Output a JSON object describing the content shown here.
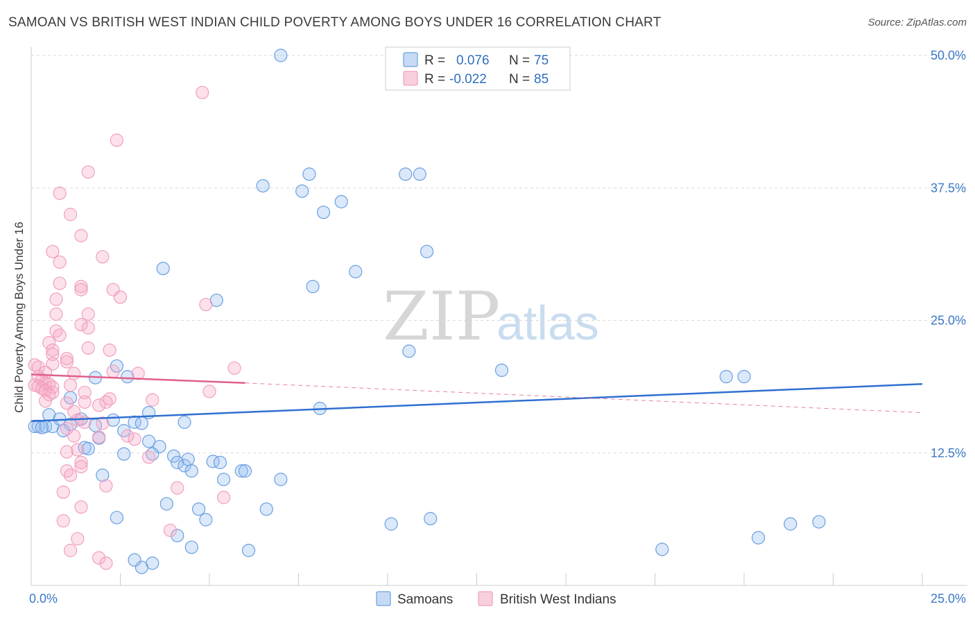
{
  "title": "SAMOAN VS BRITISH WEST INDIAN CHILD POVERTY AMONG BOYS UNDER 16 CORRELATION CHART",
  "source": "Source: ZipAtlas.com",
  "watermark": {
    "zip": "ZIP",
    "atlas": "atlas"
  },
  "chart_data": {
    "type": "scatter",
    "xlabel": "",
    "ylabel": "Child Poverty Among Boys Under 16",
    "xlim": [
      0,
      25
    ],
    "ylim": [
      0,
      50
    ],
    "x_tick_labels": [
      "0.0%",
      "25.0%"
    ],
    "y_ticks": [
      12.5,
      25.0,
      37.5,
      50.0
    ],
    "y_tick_labels": [
      "12.5%",
      "25.0%",
      "37.5%",
      "50.0%"
    ],
    "grid": "horizontal-dashed",
    "legend_placement": "top-center",
    "legend": {
      "r_label": "R =",
      "n_label": "N =",
      "entries": [
        {
          "name": "Samoans",
          "r": "0.076",
          "n": "75"
        },
        {
          "name": "British West Indians",
          "r": "-0.022",
          "n": "85"
        }
      ]
    },
    "series": [
      {
        "name": "Samoans",
        "color": "#6a9fe0",
        "line_color": "#2f6fd0",
        "trend": {
          "x": [
            0,
            25
          ],
          "y": [
            15.5,
            19.0
          ],
          "dashed_after": null
        },
        "points": [
          [
            7.0,
            50.0
          ],
          [
            6.5,
            37.7
          ],
          [
            7.6,
            37.2
          ],
          [
            7.8,
            38.8
          ],
          [
            8.2,
            35.2
          ],
          [
            8.7,
            36.2
          ],
          [
            10.5,
            38.8
          ],
          [
            10.9,
            38.8
          ],
          [
            11.1,
            31.5
          ],
          [
            3.7,
            29.9
          ],
          [
            7.9,
            28.2
          ],
          [
            9.1,
            29.6
          ],
          [
            5.2,
            26.9
          ],
          [
            10.6,
            22.1
          ],
          [
            13.2,
            20.3
          ],
          [
            19.5,
            19.7
          ],
          [
            20.0,
            19.7
          ],
          [
            2.4,
            20.7
          ],
          [
            2.7,
            19.7
          ],
          [
            1.8,
            19.6
          ],
          [
            1.1,
            17.7
          ],
          [
            8.1,
            16.7
          ],
          [
            0.5,
            16.1
          ],
          [
            1.4,
            15.7
          ],
          [
            2.3,
            15.6
          ],
          [
            2.9,
            15.4
          ],
          [
            0.8,
            15.7
          ],
          [
            1.8,
            15.1
          ],
          [
            1.1,
            15.2
          ],
          [
            0.2,
            15.0
          ],
          [
            0.4,
            15.0
          ],
          [
            0.6,
            15.0
          ],
          [
            0.9,
            14.6
          ],
          [
            3.3,
            16.3
          ],
          [
            4.3,
            15.4
          ],
          [
            3.1,
            15.3
          ],
          [
            0.1,
            15.0
          ],
          [
            0.3,
            14.9
          ],
          [
            3.3,
            13.6
          ],
          [
            3.6,
            13.1
          ],
          [
            1.5,
            13.0
          ],
          [
            1.6,
            12.9
          ],
          [
            1.9,
            13.9
          ],
          [
            2.6,
            14.6
          ],
          [
            2.6,
            12.4
          ],
          [
            3.4,
            12.4
          ],
          [
            4.0,
            12.2
          ],
          [
            4.1,
            11.6
          ],
          [
            4.3,
            11.3
          ],
          [
            4.5,
            10.8
          ],
          [
            5.1,
            11.7
          ],
          [
            5.3,
            11.6
          ],
          [
            5.4,
            10.0
          ],
          [
            5.9,
            10.8
          ],
          [
            6.0,
            10.8
          ],
          [
            7.0,
            10.0
          ],
          [
            2.0,
            10.4
          ],
          [
            2.4,
            6.4
          ],
          [
            3.8,
            7.7
          ],
          [
            4.7,
            7.2
          ],
          [
            4.9,
            6.2
          ],
          [
            6.6,
            7.2
          ],
          [
            11.2,
            6.3
          ],
          [
            10.1,
            5.8
          ],
          [
            21.3,
            5.8
          ],
          [
            22.1,
            6.0
          ],
          [
            20.4,
            4.5
          ],
          [
            17.7,
            3.4
          ],
          [
            4.5,
            3.6
          ],
          [
            4.1,
            4.7
          ],
          [
            3.4,
            2.1
          ],
          [
            3.1,
            1.7
          ],
          [
            6.1,
            3.3
          ],
          [
            2.9,
            2.4
          ],
          [
            4.4,
            11.9
          ]
        ]
      },
      {
        "name": "British West Indians",
        "color": "#f0a0bc",
        "line_color": "#e0608a",
        "trend": {
          "x": [
            0,
            6.0
          ],
          "y": [
            19.9,
            19.1
          ],
          "dashed_to": [
            25,
            16.3
          ]
        },
        "points": [
          [
            4.8,
            46.5
          ],
          [
            2.4,
            42.0
          ],
          [
            1.6,
            39.0
          ],
          [
            0.8,
            37.0
          ],
          [
            1.1,
            35.0
          ],
          [
            1.4,
            33.0
          ],
          [
            0.6,
            31.5
          ],
          [
            2.0,
            31.0
          ],
          [
            0.8,
            30.5
          ],
          [
            0.8,
            28.5
          ],
          [
            1.4,
            28.2
          ],
          [
            1.4,
            27.9
          ],
          [
            2.3,
            27.9
          ],
          [
            2.5,
            27.2
          ],
          [
            0.7,
            27.0
          ],
          [
            4.9,
            26.5
          ],
          [
            0.7,
            25.6
          ],
          [
            1.6,
            25.6
          ],
          [
            1.4,
            24.6
          ],
          [
            1.6,
            24.3
          ],
          [
            0.7,
            24.0
          ],
          [
            0.8,
            23.6
          ],
          [
            0.5,
            22.9
          ],
          [
            0.6,
            22.2
          ],
          [
            1.6,
            22.4
          ],
          [
            2.2,
            22.2
          ],
          [
            0.6,
            21.8
          ],
          [
            1.0,
            21.4
          ],
          [
            1.0,
            21.1
          ],
          [
            0.6,
            20.9
          ],
          [
            0.1,
            20.8
          ],
          [
            0.2,
            20.6
          ],
          [
            2.3,
            20.2
          ],
          [
            3.0,
            20.0
          ],
          [
            1.2,
            20.0
          ],
          [
            0.4,
            20.1
          ],
          [
            0.2,
            19.7
          ],
          [
            0.3,
            19.4
          ],
          [
            0.4,
            19.1
          ],
          [
            0.5,
            19.0
          ],
          [
            0.1,
            18.9
          ],
          [
            0.2,
            18.8
          ],
          [
            0.3,
            18.6
          ],
          [
            0.4,
            18.4
          ],
          [
            0.6,
            18.7
          ],
          [
            1.1,
            18.9
          ],
          [
            0.6,
            18.2
          ],
          [
            0.5,
            18.0
          ],
          [
            1.5,
            18.2
          ],
          [
            1.5,
            17.3
          ],
          [
            2.1,
            17.3
          ],
          [
            2.2,
            17.6
          ],
          [
            3.4,
            17.5
          ],
          [
            5.0,
            18.3
          ],
          [
            5.7,
            20.5
          ],
          [
            1.0,
            17.2
          ],
          [
            1.9,
            17.0
          ],
          [
            0.4,
            17.4
          ],
          [
            1.2,
            16.4
          ],
          [
            1.3,
            15.6
          ],
          [
            1.5,
            15.4
          ],
          [
            2.0,
            15.3
          ],
          [
            1.0,
            14.8
          ],
          [
            1.2,
            14.1
          ],
          [
            1.9,
            14.0
          ],
          [
            2.7,
            14.1
          ],
          [
            2.9,
            13.8
          ],
          [
            1.3,
            12.8
          ],
          [
            1.0,
            12.6
          ],
          [
            3.3,
            12.1
          ],
          [
            1.4,
            11.6
          ],
          [
            1.4,
            11.2
          ],
          [
            1.0,
            10.8
          ],
          [
            1.1,
            10.4
          ],
          [
            2.1,
            9.4
          ],
          [
            0.9,
            8.8
          ],
          [
            4.1,
            9.2
          ],
          [
            5.4,
            8.3
          ],
          [
            1.4,
            7.4
          ],
          [
            0.9,
            6.1
          ],
          [
            3.9,
            5.2
          ],
          [
            1.3,
            4.4
          ],
          [
            1.1,
            3.3
          ],
          [
            1.9,
            2.6
          ],
          [
            2.1,
            2.1
          ]
        ]
      }
    ]
  }
}
